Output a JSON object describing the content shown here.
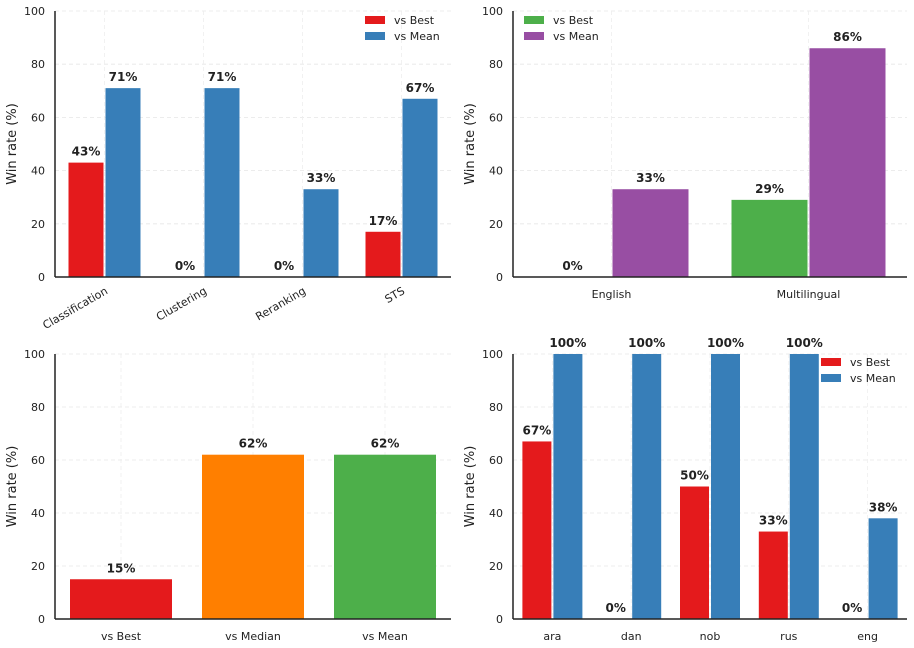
{
  "chart_data": [
    {
      "type": "bar",
      "id": "top-left",
      "ylabel": "Win rate (%)",
      "ylim": [
        0,
        100
      ],
      "yticks": [
        0,
        20,
        40,
        60,
        80,
        100
      ],
      "categories": [
        "Classification",
        "Clustering",
        "Reranking",
        "STS"
      ],
      "rotate_xticks": true,
      "legend": "top-right",
      "grid": true,
      "series": [
        {
          "name": "vs Best",
          "color": "#e41a1c",
          "values": [
            43,
            0,
            0,
            17
          ],
          "labels": [
            "43%",
            "0%",
            "0%",
            "17%"
          ]
        },
        {
          "name": "vs Mean",
          "color": "#377eb8",
          "values": [
            71,
            71,
            33,
            67
          ],
          "labels": [
            "71%",
            "71%",
            "33%",
            "67%"
          ]
        }
      ]
    },
    {
      "type": "bar",
      "id": "top-right",
      "ylabel": "Win rate (%)",
      "ylim": [
        0,
        100
      ],
      "yticks": [
        0,
        20,
        40,
        60,
        80,
        100
      ],
      "categories": [
        "English",
        "Multilingual"
      ],
      "rotate_xticks": false,
      "legend": "top-left",
      "grid": true,
      "series": [
        {
          "name": "vs Best",
          "color": "#4daf4a",
          "values": [
            0,
            29
          ],
          "labels": [
            "0%",
            "29%"
          ]
        },
        {
          "name": "vs Mean",
          "color": "#984ea3",
          "values": [
            33,
            86
          ],
          "labels": [
            "33%",
            "86%"
          ]
        }
      ]
    },
    {
      "type": "bar",
      "id": "bottom-left",
      "ylabel": "Win rate (%)",
      "ylim": [
        0,
        100
      ],
      "yticks": [
        0,
        20,
        40,
        60,
        80,
        100
      ],
      "categories": [
        "vs Best",
        "vs Median",
        "vs Mean"
      ],
      "rotate_xticks": false,
      "legend": "none",
      "grid": true,
      "bar_colors": [
        "#e41a1c",
        "#ff7f00",
        "#4daf4a"
      ],
      "series": [
        {
          "name": "Win rate",
          "values": [
            15,
            62,
            62
          ],
          "labels": [
            "15%",
            "62%",
            "62%"
          ]
        }
      ]
    },
    {
      "type": "bar",
      "id": "bottom-right",
      "ylabel": "Win rate (%)",
      "ylim": [
        0,
        100
      ],
      "yticks": [
        0,
        20,
        40,
        60,
        80,
        100
      ],
      "categories": [
        "ara",
        "dan",
        "nob",
        "rus",
        "eng"
      ],
      "rotate_xticks": false,
      "legend": "top-right",
      "grid": true,
      "series": [
        {
          "name": "vs Best",
          "color": "#e41a1c",
          "values": [
            67,
            0,
            50,
            33,
            0
          ],
          "labels": [
            "67%",
            "0%",
            "50%",
            "33%",
            "0%"
          ]
        },
        {
          "name": "vs Mean",
          "color": "#377eb8",
          "values": [
            100,
            100,
            100,
            100,
            38
          ],
          "labels": [
            "100%",
            "100%",
            "100%",
            "100%",
            "38%"
          ]
        }
      ]
    }
  ]
}
